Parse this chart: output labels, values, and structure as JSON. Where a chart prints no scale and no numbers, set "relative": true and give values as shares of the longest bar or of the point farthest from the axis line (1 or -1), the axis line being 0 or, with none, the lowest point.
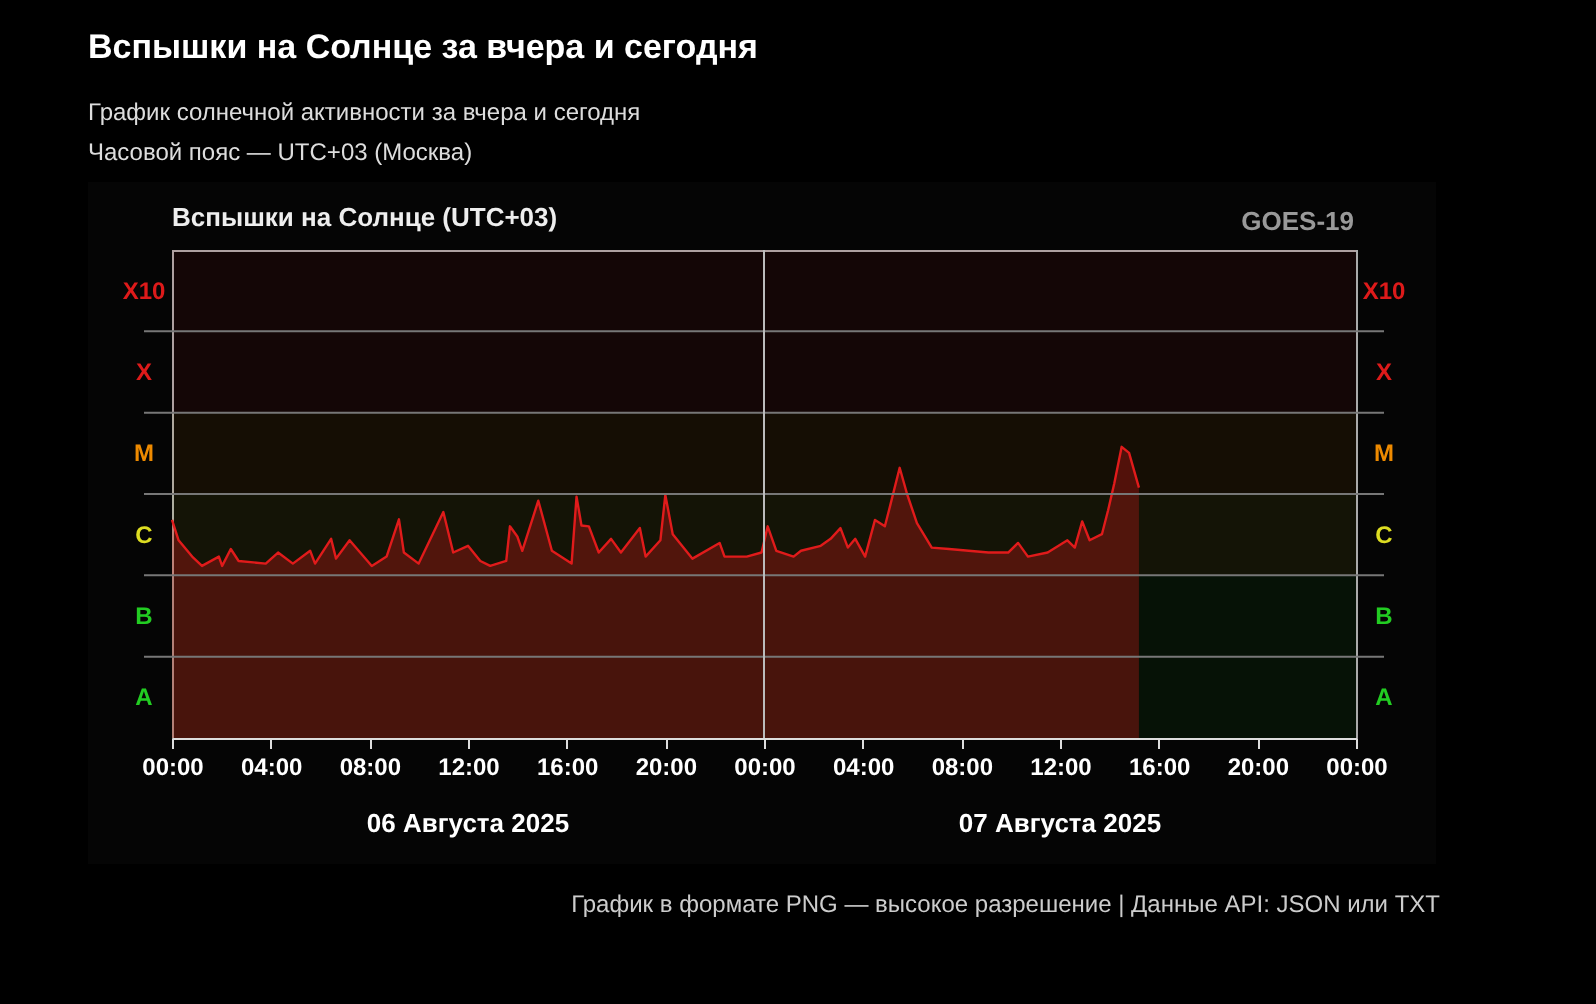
{
  "chart_data": {
    "type": "area",
    "title": "Вспышки на Солнце за вчера и сегодня",
    "subtitle": "График солнечной активности за вчера и сегодня\nЧасовой пояс — UTC+03 (Москва)",
    "annotations": [
      "Вспышки на Солнце (UTC+03)",
      "GOES-19",
      "06 Августа 2025",
      "07 Августа 2025",
      "График в формате PNG — высокое разрешение | Данные API: JSON или TXT"
    ],
    "relative": true,
    "x": [
      "2025-08-06T00:00",
      "2025-08-06T00:16",
      "2025-08-06T00:49",
      "2025-08-06T01:13",
      "2025-08-06T01:54",
      "2025-08-06T02:02",
      "2025-08-06T02:23",
      "2025-08-06T02:42",
      "2025-08-06T03:48",
      "2025-08-06T04:18",
      "2025-08-06T04:54",
      "2025-08-06T05:36",
      "2025-08-06T05:48",
      "2025-08-06T06:27",
      "2025-08-06T06:39",
      "2025-08-06T07:12",
      "2025-08-06T08:06",
      "2025-08-06T08:42",
      "2025-08-06T09:12",
      "2025-08-06T09:24",
      "2025-08-06T10:00",
      "2025-08-06T11:00",
      "2025-08-06T11:24",
      "2025-08-06T12:00",
      "2025-08-06T12:30",
      "2025-08-06T12:54",
      "2025-08-06T13:33",
      "2025-08-06T13:42",
      "2025-08-06T14:00",
      "2025-08-06T14:12",
      "2025-08-06T14:51",
      "2025-08-06T15:24",
      "2025-08-06T16:12",
      "2025-08-06T16:24",
      "2025-08-06T16:36",
      "2025-08-06T16:54",
      "2025-08-06T17:18",
      "2025-08-06T17:48",
      "2025-08-06T18:12",
      "2025-08-06T18:58",
      "2025-08-06T19:12",
      "2025-08-06T19:48",
      "2025-08-06T20:00",
      "2025-08-06T20:18",
      "2025-08-06T21:06",
      "2025-08-06T22:12",
      "2025-08-06T22:24",
      "2025-08-06T23:18",
      "2025-08-06T23:54",
      "2025-08-07T00:09",
      "2025-08-07T00:30",
      "2025-08-07T01:12",
      "2025-08-07T01:30",
      "2025-08-07T02:18",
      "2025-08-07T02:42",
      "2025-08-07T03:06",
      "2025-08-07T03:24",
      "2025-08-07T03:42",
      "2025-08-07T04:06",
      "2025-08-07T04:30",
      "2025-08-07T04:54",
      "2025-08-07T05:06",
      "2025-08-07T05:30",
      "2025-08-07T05:48",
      "2025-08-07T06:12",
      "2025-08-07T06:48",
      "2025-08-07T07:30",
      "2025-08-07T08:18",
      "2025-08-07T09:06",
      "2025-08-07T09:54",
      "2025-08-07T10:18",
      "2025-08-07T10:42",
      "2025-08-07T11:30",
      "2025-08-07T12:18",
      "2025-08-07T12:36",
      "2025-08-07T12:54",
      "2025-08-07T13:12",
      "2025-08-07T13:42",
      "2025-08-07T13:57",
      "2025-08-07T14:12",
      "2025-08-07T14:30",
      "2025-08-07T14:48",
      "2025-08-07T15:12"
    ],
    "series": [
      {
        "color": "#e01b1b",
        "values": [
          0.749,
          0.679,
          0.623,
          0.591,
          0.623,
          0.591,
          0.649,
          0.608,
          0.599,
          0.637,
          0.599,
          0.643,
          0.599,
          0.684,
          0.616,
          0.679,
          0.591,
          0.623,
          0.751,
          0.637,
          0.599,
          0.776,
          0.637,
          0.66,
          0.608,
          0.591,
          0.608,
          0.727,
          0.692,
          0.643,
          0.815,
          0.643,
          0.599,
          0.829,
          0.73,
          0.727,
          0.637,
          0.684,
          0.637,
          0.721,
          0.623,
          0.679,
          0.835,
          0.7,
          0.616,
          0.67,
          0.623,
          0.623,
          0.637,
          0.727,
          0.643,
          0.623,
          0.643,
          0.66,
          0.684,
          0.721,
          0.654,
          0.684,
          0.623,
          0.749,
          0.727,
          0.793,
          0.928,
          0.838,
          0.738,
          0.654,
          0.649,
          0.643,
          0.637,
          0.637,
          0.67,
          0.623,
          0.637,
          0.679,
          0.654,
          0.744,
          0.679,
          0.7,
          0.782,
          0.874,
          1,
          0.979,
          0.86
        ]
      }
    ],
    "xlim": [
      "2025-08-06T00:00",
      "2025-08-08T00:00"
    ],
    "xticks": [
      {
        "value": "2025-08-06T00:00",
        "label": "00:00"
      },
      {
        "value": "2025-08-06T04:00",
        "label": "04:00"
      },
      {
        "value": "2025-08-06T08:00",
        "label": "08:00"
      },
      {
        "value": "2025-08-06T12:00",
        "label": "12:00"
      },
      {
        "value": "2025-08-06T16:00",
        "label": "16:00"
      },
      {
        "value": "2025-08-06T20:00",
        "label": "20:00"
      },
      {
        "value": "2025-08-07T00:00",
        "label": "00:00"
      },
      {
        "value": "2025-08-07T04:00",
        "label": "04:00"
      },
      {
        "value": "2025-08-07T08:00",
        "label": "08:00"
      },
      {
        "value": "2025-08-07T12:00",
        "label": "12:00"
      },
      {
        "value": "2025-08-07T16:00",
        "label": "16:00"
      },
      {
        "value": "2025-08-07T20:00",
        "label": "20:00"
      },
      {
        "value": "2025-08-08T00:00",
        "label": "00:00"
      }
    ],
    "bands": [
      {
        "axis": "y",
        "from": 0,
        "to": 0.279,
        "label": "A",
        "color": "#22cc22"
      },
      {
        "axis": "y",
        "from": 0.279,
        "to": 0.559,
        "label": "B",
        "color": "#22cc22"
      },
      {
        "axis": "y",
        "from": 0.559,
        "to": 0.838,
        "label": "C",
        "color": "#dddd22"
      },
      {
        "axis": "y",
        "from": 0.838,
        "to": 1.117,
        "label": "M",
        "color": "#ee8a00"
      },
      {
        "axis": "y",
        "from": 1.117,
        "to": 1.397,
        "label": "X",
        "color": "#dd1a1a"
      },
      {
        "axis": "y",
        "from": 1.397,
        "to": 1.676,
        "label": "X10",
        "color": "#dd1a1a"
      }
    ],
    "ref_lines": [
      {
        "axis": "x",
        "value": "2025-08-07T00:00",
        "color": "#bbbbbb"
      }
    ]
  }
}
